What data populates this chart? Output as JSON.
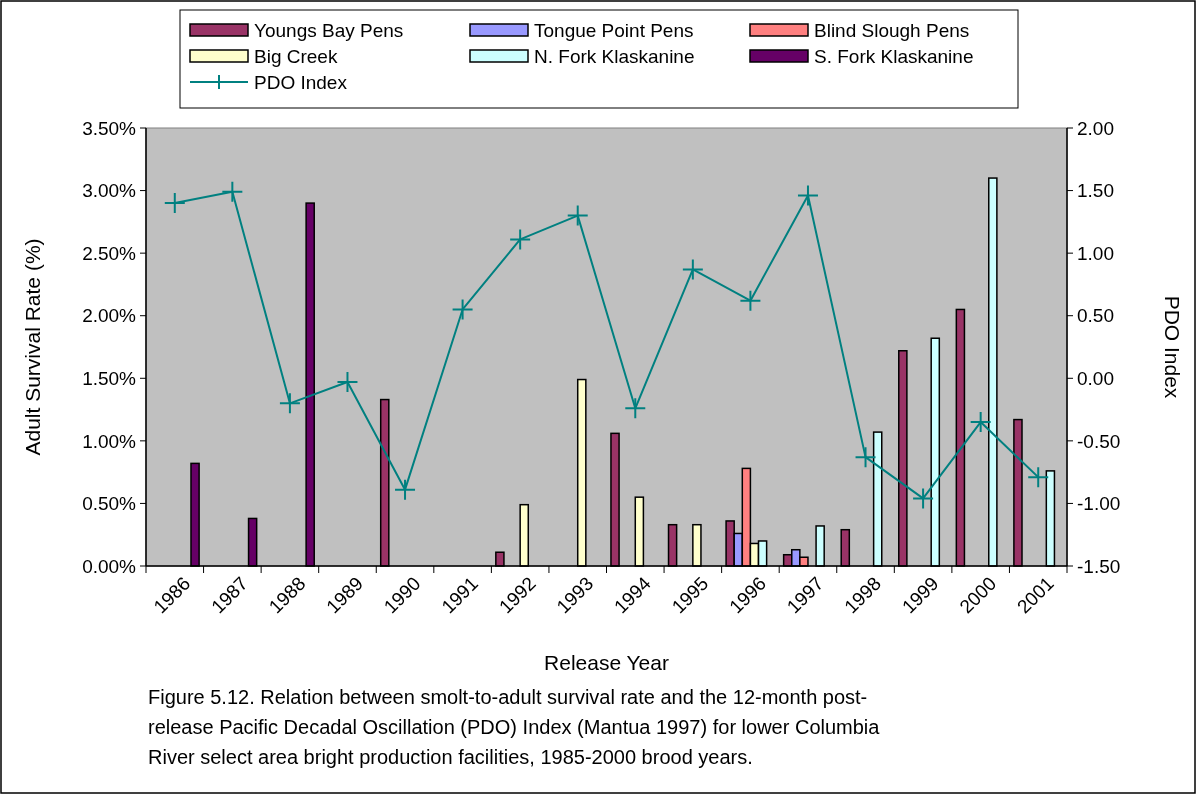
{
  "chart_data": {
    "type": "bar",
    "categories": [
      "1986",
      "1987",
      "1988",
      "1989",
      "1990",
      "1991",
      "1992",
      "1993",
      "1994",
      "1995",
      "1996",
      "1997",
      "1998",
      "1999",
      "2000",
      "2001"
    ],
    "series": [
      {
        "name": "Youngs Bay Pens",
        "color": "#993366",
        "values": [
          null,
          null,
          null,
          null,
          1.33,
          null,
          0.11,
          null,
          1.06,
          0.33,
          0.36,
          0.09,
          0.29,
          1.72,
          2.05,
          1.17
        ]
      },
      {
        "name": "Tongue Point Pens",
        "color": "#9999ff",
        "values": [
          null,
          null,
          null,
          null,
          null,
          null,
          null,
          null,
          null,
          null,
          0.26,
          0.13,
          null,
          null,
          null,
          null
        ]
      },
      {
        "name": "Blind Slough Pens",
        "color": "#ff8080",
        "values": [
          null,
          null,
          null,
          null,
          null,
          null,
          null,
          null,
          null,
          null,
          0.78,
          0.07,
          null,
          null,
          null,
          null
        ]
      },
      {
        "name": "Big Creek",
        "color": "#ffffcc",
        "values": [
          null,
          null,
          null,
          null,
          null,
          null,
          0.49,
          1.49,
          0.55,
          0.33,
          0.18,
          null,
          null,
          null,
          null,
          null
        ]
      },
      {
        "name": "N. Fork Klaskanine",
        "color": "#ccffff",
        "values": [
          null,
          null,
          null,
          null,
          null,
          null,
          null,
          null,
          null,
          null,
          0.2,
          0.32,
          1.07,
          1.82,
          3.1,
          0.76
        ]
      },
      {
        "name": "S. Fork Klaskanine",
        "color": "#660066",
        "values": [
          0.82,
          0.38,
          2.9,
          null,
          null,
          null,
          null,
          null,
          null,
          null,
          null,
          null,
          null,
          null,
          null,
          null
        ]
      },
      {
        "name": "PDO Index",
        "type": "line",
        "axis": "y2",
        "color": "#008080",
        "marker": "cross",
        "values": [
          1.4,
          1.49,
          -0.2,
          -0.03,
          -0.89,
          0.55,
          1.11,
          1.3,
          -0.24,
          0.87,
          0.62,
          1.46,
          -0.63,
          -0.96,
          -0.35,
          -0.79
        ]
      }
    ],
    "xlabel": "Release Year",
    "ylabel": "Adult Survival Rate (%)",
    "y2label": "PDO Index",
    "ylim": [
      0,
      3.5
    ],
    "yticks": [
      {
        "value": 0,
        "label": "0.00%"
      },
      {
        "value": 0.5,
        "label": "0.50%"
      },
      {
        "value": 1,
        "label": "1.00%"
      },
      {
        "value": 1.5,
        "label": "1.50%"
      },
      {
        "value": 2,
        "label": "2.00%"
      },
      {
        "value": 2.5,
        "label": "2.50%"
      },
      {
        "value": 3,
        "label": "3.00%"
      },
      {
        "value": 3.5,
        "label": "3.50%"
      }
    ],
    "y2lim": [
      -1.5,
      2
    ],
    "y2ticks": [
      {
        "value": -1.5,
        "label": "-1.50"
      },
      {
        "value": -1,
        "label": "-1.00"
      },
      {
        "value": -0.5,
        "label": "-0.50"
      },
      {
        "value": 0,
        "label": "0.00"
      },
      {
        "value": 0.5,
        "label": "0.50"
      },
      {
        "value": 1,
        "label": "1.00"
      },
      {
        "value": 1.5,
        "label": "1.50"
      },
      {
        "value": 2,
        "label": "2.00"
      }
    ],
    "grid": false,
    "legend": "top",
    "annotations": [
      "Figure 5.12.  Relation between smolt-to-adult survival rate and the 12-month post-release Pacific Decadal Oscillation (PDO) Index (Mantua 1997) for lower Columbia River select area bright production facilities, 1985-2000 brood years."
    ]
  }
}
